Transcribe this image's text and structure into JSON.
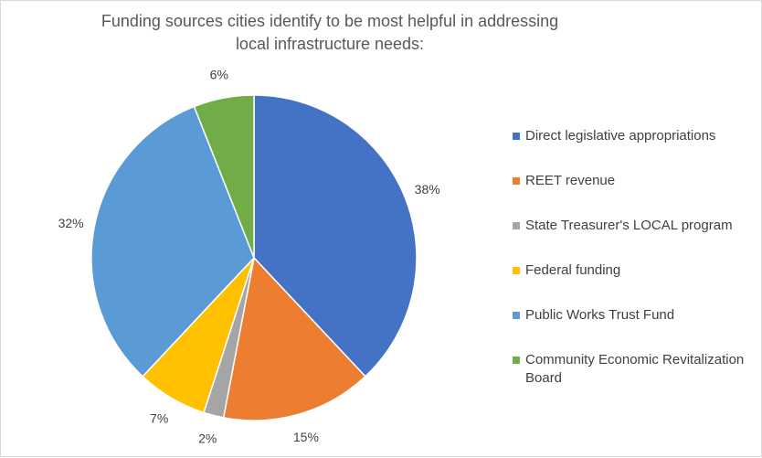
{
  "chart_data": {
    "type": "pie",
    "title": "Funding sources cities identify to be most helpful in addressing local infrastructure needs:",
    "slices": [
      {
        "label": "Direct legislative appropriations",
        "value": 38,
        "display": "38%",
        "color": "#4472C4"
      },
      {
        "label": "REET revenue",
        "value": 15,
        "display": "15%",
        "color": "#ED7D31"
      },
      {
        "label": "State Treasurer's LOCAL program",
        "value": 2,
        "display": "2%",
        "color": "#A5A5A5"
      },
      {
        "label": "Federal funding",
        "value": 7,
        "display": "7%",
        "color": "#FFC000"
      },
      {
        "label": "Public Works Trust Fund",
        "value": 32,
        "display": "32%",
        "color": "#5B9BD5"
      },
      {
        "label": "Community Economic Revitalization Board",
        "value": 6,
        "display": "6%",
        "color": "#70AD47"
      }
    ],
    "legend_position": "right"
  }
}
